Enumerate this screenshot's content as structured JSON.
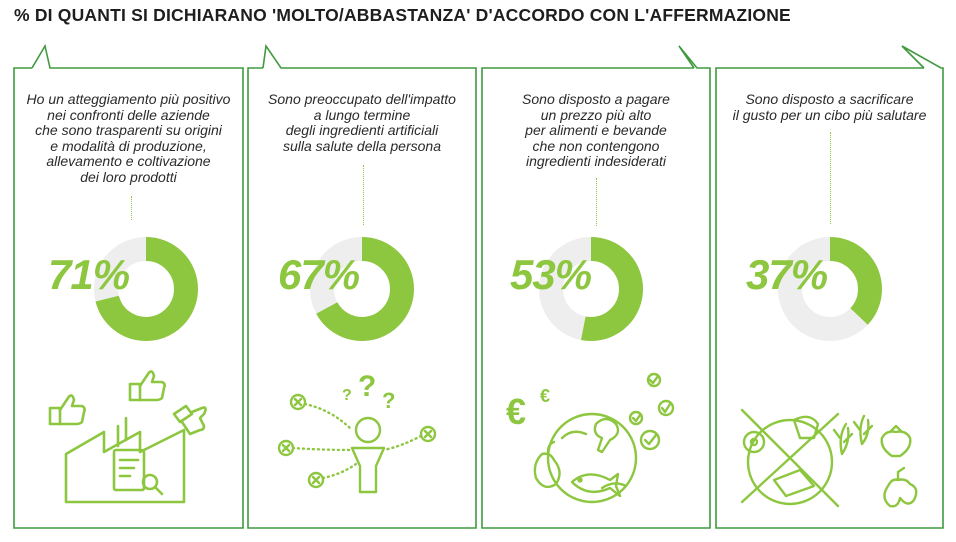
{
  "title": "% DI QUANTI SI DICHIARANO 'MOLTO/ABBASTANZA' D'ACCORDO CON L'AFFERMAZIONE",
  "colors": {
    "accent": "#8dc63f",
    "track": "#eeeeee",
    "frame": "#3f9a3f",
    "text": "#2a2a2a"
  },
  "panels": [
    {
      "statement": [
        "Ho un atteggiamento più positivo",
        "nei confronti delle aziende",
        "che sono trasparenti su origini",
        "e modalità di produzione,",
        "allevamento e coltivazione",
        "dei loro prodotti"
      ],
      "percent_label": "71%",
      "value": 71,
      "icon": "factory-thumbs-up-icon"
    },
    {
      "statement": [
        "Sono preoccupato dell'impatto",
        "a lungo termine",
        "degli ingredienti artificiali",
        "sulla salute della persona"
      ],
      "percent_label": "67%",
      "value": 67,
      "icon": "person-question-icon"
    },
    {
      "statement": [
        "Sono disposto a pagare",
        "un prezzo più alto",
        "per alimenti e bevande",
        "che non contengono",
        "ingredienti indesiderati"
      ],
      "percent_label": "53%",
      "value": 53,
      "icon": "globe-euro-food-icon"
    },
    {
      "statement": [
        "Sono disposto a sacrificare",
        "il gusto per un cibo più salutare"
      ],
      "percent_label": "37%",
      "value": 37,
      "icon": "healthy-food-swap-icon"
    }
  ]
}
